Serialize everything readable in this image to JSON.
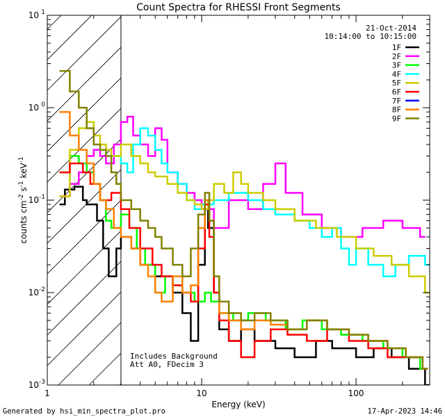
{
  "chart_data": {
    "type": "line",
    "title": "Count Spectra for RHESSI Front Segments",
    "xlabel": "Energy (keV)",
    "ylabel_parts": [
      "counts cm",
      "-2",
      " s",
      "-1",
      " keV",
      "-1"
    ],
    "xscale": "log",
    "yscale": "log",
    "xlim": [
      1,
      300
    ],
    "ylim": [
      0.001,
      10
    ],
    "x_ticks": [
      {
        "v": 1,
        "label": "1"
      },
      {
        "v": 10,
        "label": "10"
      },
      {
        "v": 100,
        "label": "100"
      }
    ],
    "y_ticks": [
      {
        "v": 0.001,
        "base": "10",
        "exp": "-3"
      },
      {
        "v": 0.01,
        "base": "10",
        "exp": "-2"
      },
      {
        "v": 0.1,
        "base": "10",
        "exp": "-1"
      },
      {
        "v": 1,
        "base": "10",
        "exp": "0"
      },
      {
        "v": 10,
        "base": "10",
        "exp": "1"
      }
    ],
    "hatched_below_energy": 3,
    "date": "21-Oct-2014",
    "time_range": "10:14:00 to 10:15:00",
    "annotations": [
      "Includes Background",
      "Att A0, FDecim 3"
    ],
    "series": [
      {
        "name": "1F",
        "color": "#000000",
        "points": [
          [
            1.2,
            0.09
          ],
          [
            1.3,
            0.13
          ],
          [
            1.5,
            0.14
          ],
          [
            1.7,
            0.1
          ],
          [
            1.8,
            0.09
          ],
          [
            2.1,
            0.06
          ],
          [
            2.3,
            0.03
          ],
          [
            2.5,
            0.015
          ],
          [
            2.8,
            0.03
          ],
          [
            3.0,
            0.04
          ],
          [
            3.5,
            0.03
          ],
          [
            4.0,
            0.02
          ],
          [
            5.0,
            0.015
          ],
          [
            6.5,
            0.01
          ],
          [
            7.5,
            0.006
          ],
          [
            8.5,
            0.003
          ],
          [
            9.5,
            0.02
          ],
          [
            10.5,
            0.08
          ],
          [
            11.0,
            0.05
          ],
          [
            12.0,
            0.01
          ],
          [
            13.0,
            0.004
          ],
          [
            15.0,
            0.003
          ],
          [
            18.0,
            0.004
          ],
          [
            22.0,
            0.003
          ],
          [
            30.0,
            0.0025
          ],
          [
            40.0,
            0.002
          ],
          [
            55.0,
            0.003
          ],
          [
            70.0,
            0.0025
          ],
          [
            100.0,
            0.002
          ],
          [
            130.0,
            0.0025
          ],
          [
            170.0,
            0.002
          ],
          [
            220.0,
            0.0015
          ],
          [
            280.0,
            0.001
          ]
        ]
      },
      {
        "name": "2F",
        "color": "#ff00ff",
        "points": [
          [
            1.2,
            0.11
          ],
          [
            1.4,
            0.15
          ],
          [
            1.6,
            0.2
          ],
          [
            1.8,
            0.3
          ],
          [
            2.0,
            0.35
          ],
          [
            2.2,
            0.3
          ],
          [
            2.4,
            0.25
          ],
          [
            2.7,
            0.4
          ],
          [
            3.0,
            0.7
          ],
          [
            3.3,
            0.8
          ],
          [
            3.6,
            0.5
          ],
          [
            4.0,
            0.4
          ],
          [
            4.5,
            0.3
          ],
          [
            5.0,
            0.6
          ],
          [
            5.5,
            0.45
          ],
          [
            6.0,
            0.2
          ],
          [
            7.0,
            0.15
          ],
          [
            8.0,
            0.12
          ],
          [
            9.0,
            0.1
          ],
          [
            10.0,
            0.08
          ],
          [
            12.0,
            0.05
          ],
          [
            15.0,
            0.1
          ],
          [
            20.0,
            0.08
          ],
          [
            25.0,
            0.15
          ],
          [
            30.0,
            0.25
          ],
          [
            35.0,
            0.12
          ],
          [
            45.0,
            0.07
          ],
          [
            60.0,
            0.05
          ],
          [
            80.0,
            0.04
          ],
          [
            110.0,
            0.05
          ],
          [
            150.0,
            0.06
          ],
          [
            200.0,
            0.05
          ],
          [
            260.0,
            0.04
          ]
        ]
      },
      {
        "name": "3F",
        "color": "#00ff00",
        "points": [
          [
            1.2,
            0.2
          ],
          [
            1.4,
            0.3
          ],
          [
            1.6,
            0.25
          ],
          [
            1.8,
            0.2
          ],
          [
            2.0,
            0.15
          ],
          [
            2.2,
            0.1
          ],
          [
            2.4,
            0.06
          ],
          [
            2.6,
            0.05
          ],
          [
            3.0,
            0.07
          ],
          [
            3.4,
            0.05
          ],
          [
            3.8,
            0.03
          ],
          [
            4.3,
            0.02
          ],
          [
            5.0,
            0.01
          ],
          [
            5.8,
            0.015
          ],
          [
            6.5,
            0.012
          ],
          [
            7.5,
            0.01
          ],
          [
            9.0,
            0.008
          ],
          [
            10.5,
            0.01
          ],
          [
            11.5,
            0.008
          ],
          [
            13.0,
            0.006
          ],
          [
            16.0,
            0.005
          ],
          [
            20.0,
            0.006
          ],
          [
            26.0,
            0.005
          ],
          [
            35.0,
            0.004
          ],
          [
            45.0,
            0.005
          ],
          [
            60.0,
            0.004
          ],
          [
            80.0,
            0.0035
          ],
          [
            110.0,
            0.003
          ],
          [
            150.0,
            0.0025
          ],
          [
            200.0,
            0.002
          ],
          [
            260.0,
            0.0015
          ]
        ]
      },
      {
        "name": "4F",
        "color": "#00ffff",
        "points": [
          [
            2.6,
            0.3
          ],
          [
            3.0,
            0.25
          ],
          [
            3.3,
            0.2
          ],
          [
            3.6,
            0.4
          ],
          [
            4.0,
            0.6
          ],
          [
            4.5,
            0.5
          ],
          [
            5.0,
            0.35
          ],
          [
            5.5,
            0.25
          ],
          [
            6.0,
            0.2
          ],
          [
            7.0,
            0.15
          ],
          [
            8.0,
            0.1
          ],
          [
            9.0,
            0.08
          ],
          [
            10.0,
            0.09
          ],
          [
            12.0,
            0.1
          ],
          [
            15.0,
            0.12
          ],
          [
            20.0,
            0.1
          ],
          [
            25.0,
            0.08
          ],
          [
            30.0,
            0.07
          ],
          [
            40.0,
            0.06
          ],
          [
            50.0,
            0.05
          ],
          [
            60.0,
            0.04
          ],
          [
            70.0,
            0.05
          ],
          [
            80.0,
            0.03
          ],
          [
            90.0,
            0.02
          ],
          [
            100.0,
            0.03
          ],
          [
            120.0,
            0.02
          ],
          [
            150.0,
            0.015
          ],
          [
            180.0,
            0.02
          ],
          [
            220.0,
            0.025
          ],
          [
            280.0,
            0.02
          ]
        ]
      },
      {
        "name": "5F",
        "color": "#cccc00",
        "points": [
          [
            1.2,
            0.11
          ],
          [
            1.4,
            0.35
          ],
          [
            1.6,
            0.6
          ],
          [
            1.8,
            0.7
          ],
          [
            2.0,
            0.5
          ],
          [
            2.2,
            0.4
          ],
          [
            2.4,
            0.35
          ],
          [
            2.6,
            0.3
          ],
          [
            3.0,
            0.4
          ],
          [
            3.5,
            0.3
          ],
          [
            4.0,
            0.25
          ],
          [
            4.5,
            0.2
          ],
          [
            5.0,
            0.18
          ],
          [
            6.0,
            0.15
          ],
          [
            7.0,
            0.12
          ],
          [
            8.0,
            0.1
          ],
          [
            9.0,
            0.09
          ],
          [
            10.0,
            0.08
          ],
          [
            11.0,
            0.1
          ],
          [
            12.0,
            0.15
          ],
          [
            14.0,
            0.12
          ],
          [
            16.0,
            0.2
          ],
          [
            18.0,
            0.15
          ],
          [
            20.0,
            0.12
          ],
          [
            25.0,
            0.1
          ],
          [
            30.0,
            0.08
          ],
          [
            40.0,
            0.06
          ],
          [
            55.0,
            0.05
          ],
          [
            75.0,
            0.04
          ],
          [
            100.0,
            0.03
          ],
          [
            130.0,
            0.025
          ],
          [
            170.0,
            0.02
          ],
          [
            220.0,
            0.015
          ],
          [
            280.0,
            0.01
          ]
        ]
      },
      {
        "name": "6F",
        "color": "#ff0000",
        "points": [
          [
            1.2,
            0.2
          ],
          [
            1.4,
            0.25
          ],
          [
            1.7,
            0.2
          ],
          [
            1.9,
            0.15
          ],
          [
            2.2,
            0.1
          ],
          [
            2.6,
            0.12
          ],
          [
            3.0,
            0.08
          ],
          [
            3.4,
            0.05
          ],
          [
            4.0,
            0.03
          ],
          [
            4.8,
            0.02
          ],
          [
            5.5,
            0.015
          ],
          [
            6.5,
            0.012
          ],
          [
            7.5,
            0.01
          ],
          [
            8.5,
            0.008
          ],
          [
            9.5,
            0.03
          ],
          [
            10.5,
            0.09
          ],
          [
            11.2,
            0.04
          ],
          [
            12.0,
            0.01
          ],
          [
            13.0,
            0.005
          ],
          [
            15.0,
            0.003
          ],
          [
            18.0,
            0.002
          ],
          [
            22.0,
            0.003
          ],
          [
            28.0,
            0.004
          ],
          [
            36.0,
            0.0035
          ],
          [
            48.0,
            0.003
          ],
          [
            65.0,
            0.004
          ],
          [
            90.0,
            0.003
          ],
          [
            120.0,
            0.0025
          ],
          [
            160.0,
            0.002
          ],
          [
            210.0,
            0.002
          ],
          [
            270.0,
            0.0015
          ]
        ]
      },
      {
        "name": "7F",
        "color": "#0000ff",
        "points": []
      },
      {
        "name": "8F",
        "color": "#ff8000",
        "points": [
          [
            1.2,
            0.9
          ],
          [
            1.4,
            0.5
          ],
          [
            1.6,
            0.35
          ],
          [
            1.8,
            0.25
          ],
          [
            2.0,
            0.15
          ],
          [
            2.2,
            0.1
          ],
          [
            2.4,
            0.08
          ],
          [
            2.7,
            0.05
          ],
          [
            3.0,
            0.04
          ],
          [
            3.5,
            0.03
          ],
          [
            4.0,
            0.02
          ],
          [
            4.5,
            0.015
          ],
          [
            5.0,
            0.01
          ],
          [
            5.5,
            0.008
          ],
          [
            6.5,
            0.015
          ],
          [
            7.5,
            0.01
          ],
          [
            8.5,
            0.012
          ],
          [
            9.5,
            0.05
          ],
          [
            10.5,
            0.1
          ],
          [
            11.2,
            0.06
          ],
          [
            12.0,
            0.015
          ],
          [
            13.0,
            0.006
          ],
          [
            15.0,
            0.005
          ],
          [
            18.0,
            0.004
          ],
          [
            22.0,
            0.005
          ],
          [
            28.0,
            0.0045
          ],
          [
            36.0,
            0.004
          ],
          [
            48.0,
            0.005
          ],
          [
            65.0,
            0.004
          ],
          [
            90.0,
            0.0035
          ],
          [
            120.0,
            0.003
          ],
          [
            160.0,
            0.0025
          ],
          [
            210.0,
            0.002
          ],
          [
            270.0,
            0.0015
          ]
        ]
      },
      {
        "name": "9F",
        "color": "#808000",
        "points": [
          [
            1.2,
            2.5
          ],
          [
            1.4,
            1.5
          ],
          [
            1.6,
            1.0
          ],
          [
            1.8,
            0.6
          ],
          [
            2.0,
            0.4
          ],
          [
            2.2,
            0.35
          ],
          [
            2.4,
            0.3
          ],
          [
            2.6,
            0.2
          ],
          [
            2.8,
            0.15
          ],
          [
            3.0,
            0.1
          ],
          [
            3.5,
            0.08
          ],
          [
            4.0,
            0.06
          ],
          [
            4.5,
            0.05
          ],
          [
            5.0,
            0.04
          ],
          [
            5.5,
            0.03
          ],
          [
            6.5,
            0.02
          ],
          [
            7.5,
            0.015
          ],
          [
            8.5,
            0.03
          ],
          [
            9.5,
            0.07
          ],
          [
            10.5,
            0.12
          ],
          [
            11.2,
            0.06
          ],
          [
            12.0,
            0.015
          ],
          [
            13.0,
            0.008
          ],
          [
            15.0,
            0.006
          ],
          [
            18.0,
            0.005
          ],
          [
            22.0,
            0.006
          ],
          [
            28.0,
            0.005
          ],
          [
            36.0,
            0.004
          ],
          [
            48.0,
            0.005
          ],
          [
            65.0,
            0.004
          ],
          [
            90.0,
            0.0035
          ],
          [
            120.0,
            0.003
          ],
          [
            160.0,
            0.0025
          ],
          [
            210.0,
            0.002
          ],
          [
            270.0,
            0.0015
          ]
        ]
      }
    ]
  },
  "footer": {
    "generated_by": "Generated by hsi_min_spectra_plot.pro",
    "timestamp": "17-Apr-2023 14:46"
  }
}
